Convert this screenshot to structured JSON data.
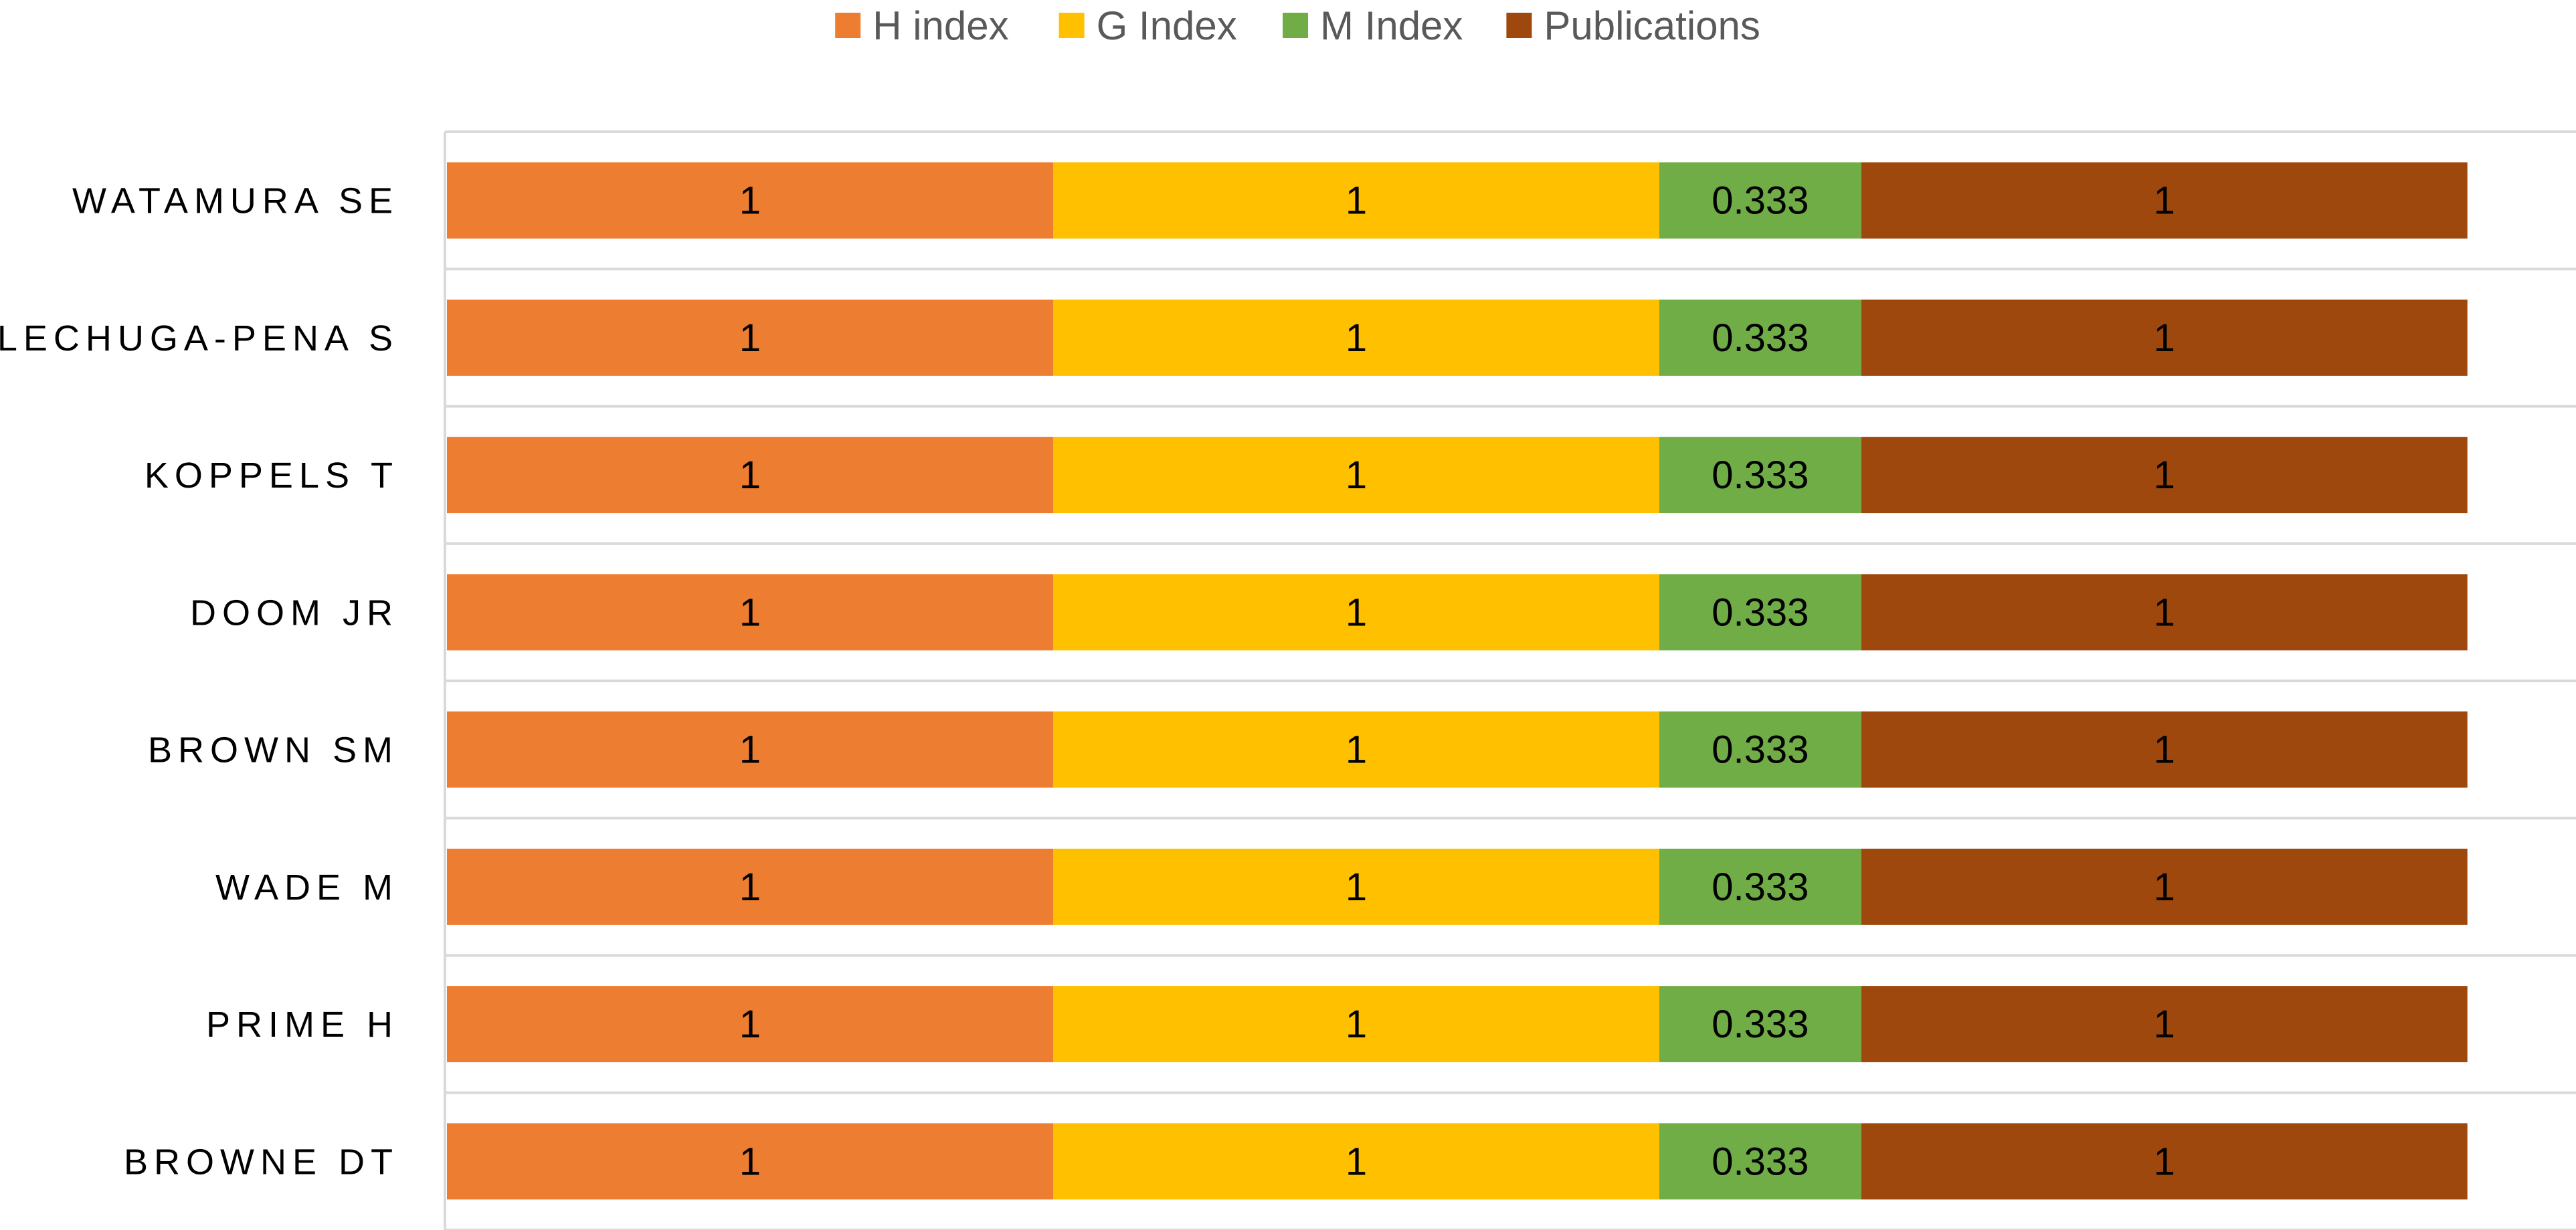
{
  "chart_data": {
    "type": "bar",
    "orientation": "horizontal",
    "stacked": true,
    "categories": [
      "WATAMURA SE",
      "LECHUGA-PENA S",
      "KOPPELS T",
      "DOOM JR",
      "BROWN SM",
      "WADE M",
      "PRIME H",
      "BROWNE DT"
    ],
    "series": [
      {
        "name": "H index",
        "color": "#ED7D31",
        "values": [
          1,
          1,
          1,
          1,
          1,
          1,
          1,
          1
        ]
      },
      {
        "name": "G Index",
        "color": "#FFC000",
        "values": [
          1,
          1,
          1,
          1,
          1,
          1,
          1,
          1
        ]
      },
      {
        "name": "M Index",
        "color": "#70AD47",
        "values": [
          0.333,
          0.333,
          0.333,
          0.333,
          0.333,
          0.333,
          0.333,
          0.333
        ]
      },
      {
        "name": "Publications",
        "color": "#9E480E",
        "values": [
          1,
          1,
          1,
          1,
          1,
          1,
          1,
          1
        ]
      }
    ],
    "legend_position": "top",
    "grid": true,
    "xlim": [
      0,
      3.6
    ]
  }
}
